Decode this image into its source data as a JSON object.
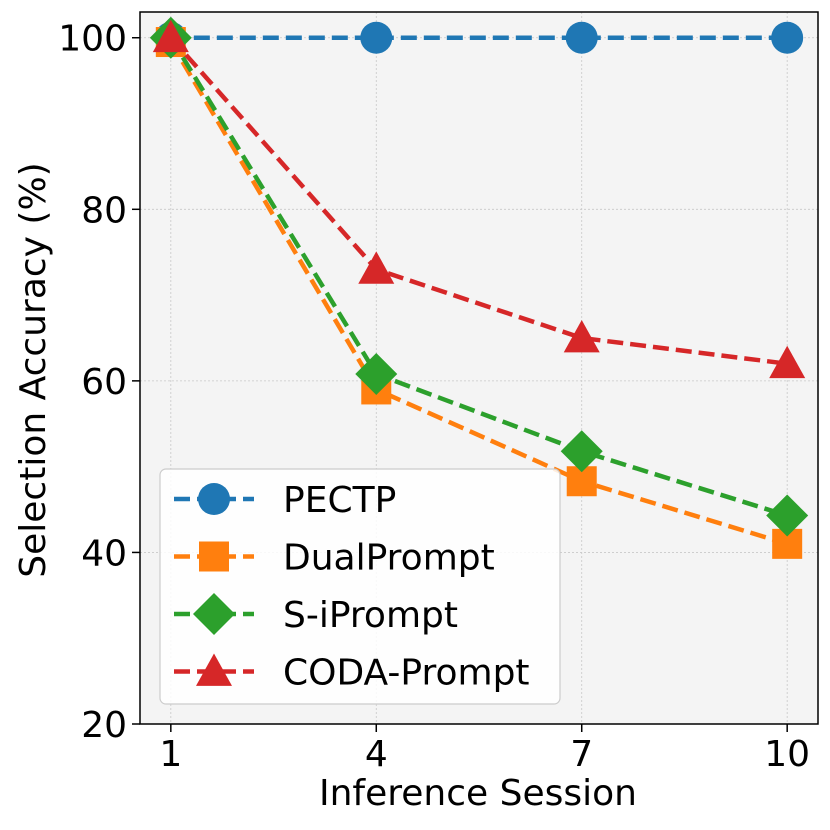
{
  "chart_data": {
    "type": "line",
    "title": "",
    "xlabel": "Inference Session",
    "ylabel": "Selection Accuracy (%)",
    "x": [
      1,
      4,
      7,
      10
    ],
    "xticks": [
      "1",
      "4",
      "7",
      "10"
    ],
    "yticks": [
      20,
      40,
      60,
      80,
      100
    ],
    "xlim": [
      0.55,
      10.45
    ],
    "ylim": [
      20,
      103
    ],
    "grid": true,
    "legend_position": "lower-left",
    "series": [
      {
        "name": "PECTP",
        "values": [
          100,
          100,
          100,
          100
        ],
        "color": "#1f77b4",
        "marker": "circle"
      },
      {
        "name": "DualPrompt",
        "values": [
          99.5,
          59,
          48.3,
          41
        ],
        "color": "#ff7f0e",
        "marker": "square"
      },
      {
        "name": "S-iPrompt",
        "values": [
          100,
          60.8,
          51.8,
          44.3
        ],
        "color": "#2ca02c",
        "marker": "diamond"
      },
      {
        "name": "CODA-Prompt",
        "values": [
          100,
          73,
          65,
          62
        ],
        "color": "#d62728",
        "marker": "triangle"
      }
    ]
  }
}
